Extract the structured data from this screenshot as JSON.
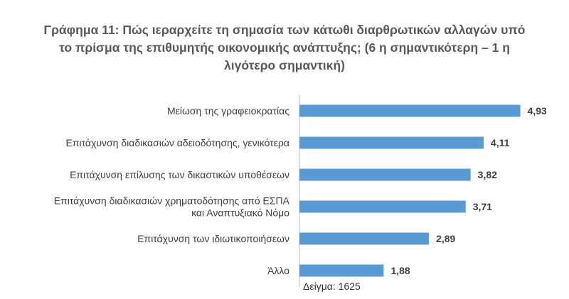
{
  "chart_data": {
    "type": "bar",
    "orientation": "horizontal",
    "title": "Γράφημα 11:  Πώς ιεραρχείτε τη σημασία των κάτωθι διαρθρωτικών αλλαγών υπό το πρίσμα της επιθυμητής οικονομικής ανάπτυξης; (6 η σημαντικότερη – 1 η λιγότερο σημαντική)",
    "categories": [
      [
        "Μείωση της γραφειοκρατίας"
      ],
      [
        "Επιτάχυνση διαδικασιών αδειοδότησης, γενικότερα"
      ],
      [
        "Επιτάχυνση επίλυσης των δικαστικών υποθέσεων"
      ],
      [
        "Επιτάχυνση διαδικασιών χρηματοδότησης από ΕΣΠΑ",
        "και Αναπτυξιακό Νόμο"
      ],
      [
        "Επιτάχυνση των ιδιωτικοποιήσεων"
      ],
      [
        "Άλλο"
      ]
    ],
    "values": [
      4.93,
      4.11,
      3.82,
      3.71,
      2.89,
      1.88
    ],
    "value_labels": [
      "4,93",
      "4,11",
      "3,82",
      "3,71",
      "2,89",
      "1,88"
    ],
    "xlim": [
      0,
      5
    ],
    "grid": false,
    "bar_color": "#5B9BD5",
    "axis_color": "#BFBFBF",
    "note": "Δείγμα: 1625"
  }
}
